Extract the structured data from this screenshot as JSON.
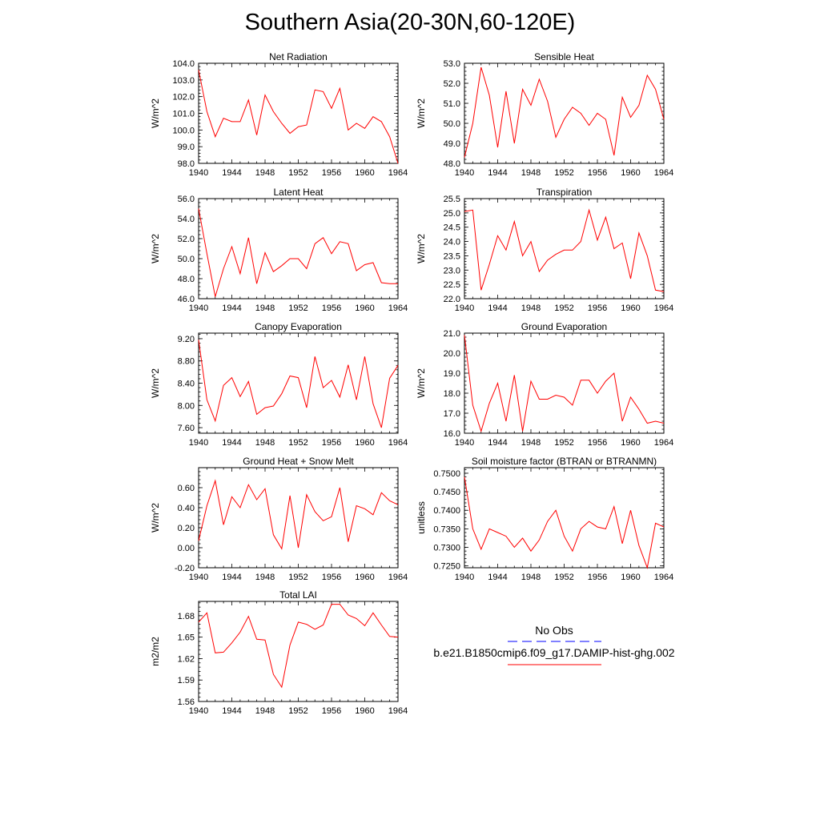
{
  "figure": {
    "title": "Southern Asia(20-30N,60-120E)"
  },
  "colors": {
    "model": "#ff0000",
    "obs": "#0000ff",
    "axis": "#000000"
  },
  "legend": {
    "obs_label": "No Obs",
    "model_label": "b.e21.B1850cmip6.f09_g17.DAMIP-hist-ghg.002"
  },
  "chart_data": [
    {
      "type": "line",
      "title": "Net Radiation",
      "ylabel": "W/m^2",
      "xlim": [
        1940,
        1964
      ],
      "ylim": [
        98.0,
        104.0
      ],
      "xticks": [
        1940,
        1944,
        1948,
        1952,
        1956,
        1960,
        1964
      ],
      "yticks": [
        98.0,
        99.0,
        100.0,
        101.0,
        102.0,
        103.0,
        104.0
      ],
      "ytick_labels": [
        "98.0",
        "99.0",
        "100.0",
        "101.0",
        "102.0",
        "103.0",
        "104.0"
      ],
      "x": [
        1940,
        1941,
        1942,
        1943,
        1944,
        1945,
        1946,
        1947,
        1948,
        1949,
        1950,
        1951,
        1952,
        1953,
        1954,
        1955,
        1956,
        1957,
        1958,
        1959,
        1960,
        1961,
        1962,
        1963,
        1964
      ],
      "series": [
        {
          "name": "b.e21.B1850cmip6.f09_g17.DAMIP-hist-ghg.002",
          "values": [
            103.6,
            101.1,
            99.6,
            100.7,
            100.5,
            100.5,
            101.8,
            99.7,
            102.1,
            101.1,
            100.4,
            99.8,
            100.2,
            100.3,
            102.4,
            102.3,
            101.3,
            102.5,
            100.0,
            100.4,
            100.1,
            100.8,
            100.5,
            99.6,
            98.0
          ]
        }
      ]
    },
    {
      "type": "line",
      "title": "Sensible Heat",
      "ylabel": "W/m^2",
      "xlim": [
        1940,
        1964
      ],
      "ylim": [
        48.0,
        53.0
      ],
      "xticks": [
        1940,
        1944,
        1948,
        1952,
        1956,
        1960,
        1964
      ],
      "yticks": [
        48.0,
        49.0,
        50.0,
        51.0,
        52.0,
        53.0
      ],
      "ytick_labels": [
        "48.0",
        "49.0",
        "50.0",
        "51.0",
        "52.0",
        "53.0"
      ],
      "x": [
        1940,
        1941,
        1942,
        1943,
        1944,
        1945,
        1946,
        1947,
        1948,
        1949,
        1950,
        1951,
        1952,
        1953,
        1954,
        1955,
        1956,
        1957,
        1958,
        1959,
        1960,
        1961,
        1962,
        1963,
        1964
      ],
      "series": [
        {
          "name": "b.e21.B1850cmip6.f09_g17.DAMIP-hist-ghg.002",
          "values": [
            48.3,
            50.0,
            52.8,
            51.4,
            48.8,
            51.6,
            49.0,
            51.7,
            50.9,
            52.2,
            51.1,
            49.3,
            50.2,
            50.8,
            50.5,
            49.9,
            50.5,
            50.2,
            48.4,
            51.3,
            50.3,
            50.9,
            52.4,
            51.7,
            50.2
          ]
        }
      ]
    },
    {
      "type": "line",
      "title": "Latent Heat",
      "ylabel": "W/m^2",
      "xlim": [
        1940,
        1964
      ],
      "ylim": [
        46.0,
        56.0
      ],
      "xticks": [
        1940,
        1944,
        1948,
        1952,
        1956,
        1960,
        1964
      ],
      "yticks": [
        46.0,
        48.0,
        50.0,
        52.0,
        54.0,
        56.0
      ],
      "ytick_labels": [
        "46.0",
        "48.0",
        "50.0",
        "52.0",
        "54.0",
        "56.0"
      ],
      "x": [
        1940,
        1941,
        1942,
        1943,
        1944,
        1945,
        1946,
        1947,
        1948,
        1949,
        1950,
        1951,
        1952,
        1953,
        1954,
        1955,
        1956,
        1957,
        1958,
        1959,
        1960,
        1961,
        1962,
        1963,
        1964
      ],
      "series": [
        {
          "name": "b.e21.B1850cmip6.f09_g17.DAMIP-hist-ghg.002",
          "values": [
            55.0,
            50.5,
            46.2,
            49.0,
            51.2,
            48.5,
            52.1,
            47.5,
            50.6,
            48.7,
            49.3,
            50.0,
            50.0,
            49.0,
            51.5,
            52.1,
            50.5,
            51.7,
            51.5,
            48.8,
            49.4,
            49.6,
            47.6,
            47.5,
            47.5
          ]
        }
      ]
    },
    {
      "type": "line",
      "title": "Transpiration",
      "ylabel": "W/m^2",
      "xlim": [
        1940,
        1964
      ],
      "ylim": [
        22.0,
        25.5
      ],
      "xticks": [
        1940,
        1944,
        1948,
        1952,
        1956,
        1960,
        1964
      ],
      "yticks": [
        22.0,
        22.5,
        23.0,
        23.5,
        24.0,
        24.5,
        25.0,
        25.5
      ],
      "ytick_labels": [
        "22.0",
        "22.5",
        "23.0",
        "23.5",
        "24.0",
        "24.5",
        "25.0",
        "25.5"
      ],
      "x": [
        1940,
        1941,
        1942,
        1943,
        1944,
        1945,
        1946,
        1947,
        1948,
        1949,
        1950,
        1951,
        1952,
        1953,
        1954,
        1955,
        1956,
        1957,
        1958,
        1959,
        1960,
        1961,
        1962,
        1963,
        1964
      ],
      "series": [
        {
          "name": "b.e21.B1850cmip6.f09_g17.DAMIP-hist-ghg.002",
          "values": [
            25.05,
            25.1,
            22.3,
            23.2,
            24.2,
            23.7,
            24.7,
            23.5,
            24.0,
            22.95,
            23.35,
            23.55,
            23.7,
            23.7,
            24.0,
            25.1,
            24.05,
            24.85,
            23.75,
            23.95,
            22.7,
            24.3,
            23.5,
            22.3,
            22.25
          ]
        }
      ]
    },
    {
      "type": "line",
      "title": "Canopy Evaporation",
      "ylabel": "W/m^2",
      "xlim": [
        1940,
        1964
      ],
      "ylim": [
        7.5,
        9.3
      ],
      "xticks": [
        1940,
        1944,
        1948,
        1952,
        1956,
        1960,
        1964
      ],
      "yticks": [
        7.6,
        8.0,
        8.4,
        8.8,
        9.2
      ],
      "ytick_labels": [
        "7.60",
        "8.00",
        "8.40",
        "8.80",
        "9.20"
      ],
      "x": [
        1940,
        1941,
        1942,
        1943,
        1944,
        1945,
        1946,
        1947,
        1948,
        1949,
        1950,
        1951,
        1952,
        1953,
        1954,
        1955,
        1956,
        1957,
        1958,
        1959,
        1960,
        1961,
        1962,
        1963,
        1964
      ],
      "series": [
        {
          "name": "b.e21.B1850cmip6.f09_g17.DAMIP-hist-ghg.002",
          "values": [
            9.18,
            8.1,
            7.72,
            8.36,
            8.5,
            8.16,
            8.43,
            7.84,
            7.96,
            7.99,
            8.21,
            8.53,
            8.5,
            7.96,
            8.88,
            8.32,
            8.45,
            8.15,
            8.73,
            8.1,
            8.88,
            8.03,
            7.6,
            8.49,
            8.72
          ]
        }
      ]
    },
    {
      "type": "line",
      "title": "Ground Evaporation",
      "ylabel": "W/m^2",
      "xlim": [
        1940,
        1964
      ],
      "ylim": [
        16.0,
        21.0
      ],
      "xticks": [
        1940,
        1944,
        1948,
        1952,
        1956,
        1960,
        1964
      ],
      "yticks": [
        16.0,
        17.0,
        18.0,
        19.0,
        20.0,
        21.0
      ],
      "ytick_labels": [
        "16.0",
        "17.0",
        "18.0",
        "19.0",
        "20.0",
        "21.0"
      ],
      "x": [
        1940,
        1941,
        1942,
        1943,
        1944,
        1945,
        1946,
        1947,
        1948,
        1949,
        1950,
        1951,
        1952,
        1953,
        1954,
        1955,
        1956,
        1957,
        1958,
        1959,
        1960,
        1961,
        1962,
        1963,
        1964
      ],
      "series": [
        {
          "name": "b.e21.B1850cmip6.f09_g17.DAMIP-hist-ghg.002",
          "values": [
            20.9,
            17.4,
            16.1,
            17.5,
            18.5,
            16.6,
            18.9,
            16.1,
            18.6,
            17.7,
            17.7,
            17.9,
            17.8,
            17.4,
            18.65,
            18.65,
            18.0,
            18.6,
            19.0,
            16.6,
            17.8,
            17.2,
            16.5,
            16.6,
            16.5
          ]
        }
      ]
    },
    {
      "type": "line",
      "title": "Ground Heat + Snow Melt",
      "ylabel": "W/m^2",
      "xlim": [
        1940,
        1964
      ],
      "ylim": [
        -0.2,
        0.8
      ],
      "xticks": [
        1940,
        1944,
        1948,
        1952,
        1956,
        1960,
        1964
      ],
      "yticks": [
        -0.2,
        0.0,
        0.2,
        0.4,
        0.6
      ],
      "ytick_labels": [
        "-0.20",
        "0.00",
        "0.20",
        "0.40",
        "0.60"
      ],
      "x": [
        1940,
        1941,
        1942,
        1943,
        1944,
        1945,
        1946,
        1947,
        1948,
        1949,
        1950,
        1951,
        1952,
        1953,
        1954,
        1955,
        1956,
        1957,
        1958,
        1959,
        1960,
        1961,
        1962,
        1963,
        1964
      ],
      "series": [
        {
          "name": "b.e21.B1850cmip6.f09_g17.DAMIP-hist-ghg.002",
          "values": [
            0.07,
            0.42,
            0.67,
            0.23,
            0.51,
            0.4,
            0.63,
            0.48,
            0.59,
            0.13,
            -0.01,
            0.52,
            0.0,
            0.53,
            0.36,
            0.27,
            0.31,
            0.6,
            0.06,
            0.42,
            0.39,
            0.33,
            0.55,
            0.47,
            0.43
          ]
        }
      ]
    },
    {
      "type": "line",
      "title": "Soil moisture factor (BTRAN or BTRANMN)",
      "ylabel": "unitless",
      "xlim": [
        1940,
        1964
      ],
      "ylim": [
        0.7245,
        0.7515
      ],
      "xticks": [
        1940,
        1944,
        1948,
        1952,
        1956,
        1960,
        1964
      ],
      "yticks": [
        0.725,
        0.73,
        0.735,
        0.74,
        0.745,
        0.75
      ],
      "ytick_labels": [
        "0.7250",
        "0.7300",
        "0.7350",
        "0.7400",
        "0.7450",
        "0.7500"
      ],
      "x": [
        1940,
        1941,
        1942,
        1943,
        1944,
        1945,
        1946,
        1947,
        1948,
        1949,
        1950,
        1951,
        1952,
        1953,
        1954,
        1955,
        1956,
        1957,
        1958,
        1959,
        1960,
        1961,
        1962,
        1963,
        1964
      ],
      "series": [
        {
          "name": "b.e21.B1850cmip6.f09_g17.DAMIP-hist-ghg.002",
          "values": [
            0.749,
            0.735,
            0.7295,
            0.735,
            0.734,
            0.733,
            0.73,
            0.7325,
            0.729,
            0.732,
            0.737,
            0.74,
            0.733,
            0.729,
            0.735,
            0.737,
            0.7355,
            0.735,
            0.741,
            0.731,
            0.74,
            0.7305,
            0.7245,
            0.7365,
            0.7355
          ]
        }
      ]
    },
    {
      "type": "line",
      "title": "Total LAI",
      "ylabel": "m2/m2",
      "xlim": [
        1940,
        1964
      ],
      "ylim": [
        1.56,
        1.7
      ],
      "xticks": [
        1940,
        1944,
        1948,
        1952,
        1956,
        1960,
        1964
      ],
      "yticks": [
        1.56,
        1.59,
        1.62,
        1.65,
        1.68
      ],
      "ytick_labels": [
        "1.56",
        "1.59",
        "1.62",
        "1.65",
        "1.68"
      ],
      "x": [
        1940,
        1941,
        1942,
        1943,
        1944,
        1945,
        1946,
        1947,
        1948,
        1949,
        1950,
        1951,
        1952,
        1953,
        1954,
        1955,
        1956,
        1957,
        1958,
        1959,
        1960,
        1961,
        1962,
        1963,
        1964
      ],
      "series": [
        {
          "name": "b.e21.B1850cmip6.f09_g17.DAMIP-hist-ghg.002",
          "values": [
            1.671,
            1.684,
            1.628,
            1.629,
            1.642,
            1.657,
            1.679,
            1.647,
            1.646,
            1.598,
            1.58,
            1.639,
            1.671,
            1.668,
            1.661,
            1.667,
            1.696,
            1.696,
            1.681,
            1.676,
            1.666,
            1.684,
            1.667,
            1.651,
            1.65
          ]
        }
      ]
    }
  ]
}
